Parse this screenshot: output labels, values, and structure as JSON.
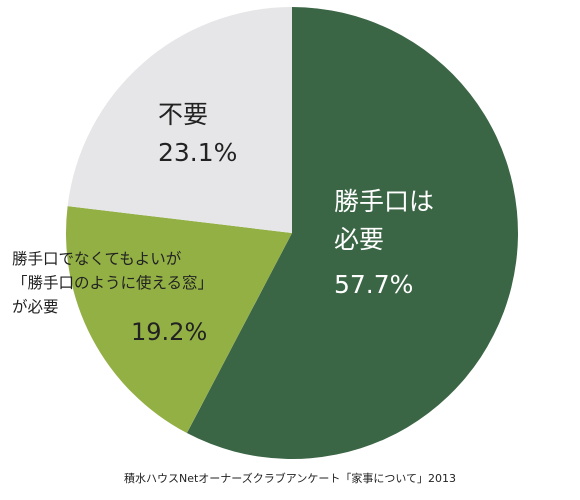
{
  "chart_data": {
    "type": "pie",
    "slices": [
      {
        "label": "勝手口は\n必要",
        "value": 57.7,
        "display": "57.7%",
        "color": "#3a6644",
        "text_color": "#ffffff"
      },
      {
        "label": "勝手口でなくてもよいが\n「勝手口のように使える窓」\nが必要",
        "value": 19.2,
        "display": "19.2%",
        "color": "#93b044",
        "text_color": "#222222"
      },
      {
        "label": "不要",
        "value": 23.1,
        "display": "23.1%",
        "color": "#e6e6e8",
        "text_color": "#222222"
      }
    ],
    "start": "12 o'clock",
    "direction": "clockwise"
  },
  "source": "積水ハウスNetオーナーズクラブアンケート「家事について」2013"
}
